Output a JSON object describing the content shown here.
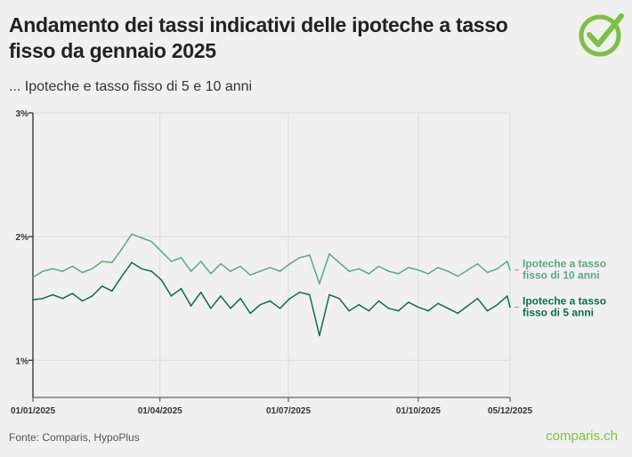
{
  "header": {
    "title": "Andamento dei tassi indicativi delle ipoteche a tasso fisso da gennaio 2025",
    "subtitle": "... Ipoteche e tasso fisso di 5 e 10 anni"
  },
  "footer": {
    "source": "Fonte: Comparis, HypoPlus",
    "brand": "comparis.ch"
  },
  "colors": {
    "ten_year": "#5aa985",
    "five_year": "#0f6e4b",
    "brand": "#7cc242"
  },
  "chart_data": {
    "type": "line",
    "title": "",
    "xlabel": "",
    "ylabel": "",
    "ylim": [
      0.7,
      3
    ],
    "yticks": [
      "1%",
      "2%",
      "3%"
    ],
    "ytick_values": [
      1,
      2,
      3
    ],
    "xticks": [
      "01/01/2025",
      "01/04/2025",
      "01/07/2025",
      "01/10/2025",
      "05/12/2025"
    ],
    "xtick_values": [
      "2025-01-01",
      "2025-04-01",
      "2025-07-01",
      "2025-10-01",
      "2025-12-05"
    ],
    "grid": true,
    "legend": "right, inline at line ends",
    "x": [
      "2025-01-01",
      "2025-01-08",
      "2025-01-15",
      "2025-01-22",
      "2025-01-29",
      "2025-02-05",
      "2025-02-12",
      "2025-02-19",
      "2025-02-26",
      "2025-03-05",
      "2025-03-12",
      "2025-03-19",
      "2025-03-26",
      "2025-04-02",
      "2025-04-09",
      "2025-04-16",
      "2025-04-23",
      "2025-04-30",
      "2025-05-07",
      "2025-05-14",
      "2025-05-21",
      "2025-05-28",
      "2025-06-04",
      "2025-06-11",
      "2025-06-18",
      "2025-06-25",
      "2025-07-02",
      "2025-07-09",
      "2025-07-16",
      "2025-07-23",
      "2025-07-30",
      "2025-08-06",
      "2025-08-13",
      "2025-08-20",
      "2025-08-27",
      "2025-09-03",
      "2025-09-10",
      "2025-09-17",
      "2025-09-24",
      "2025-10-01",
      "2025-10-08",
      "2025-10-15",
      "2025-10-22",
      "2025-10-29",
      "2025-11-05",
      "2025-11-12",
      "2025-11-19",
      "2025-11-26",
      "2025-12-03",
      "2025-12-05"
    ],
    "series": [
      {
        "name": "Ipoteche a tasso fisso di 10 anni",
        "label_lines": [
          "Ipoteche a tasso",
          "fisso di 10 anni"
        ],
        "values": [
          1.67,
          1.72,
          1.74,
          1.72,
          1.76,
          1.71,
          1.74,
          1.8,
          1.79,
          1.9,
          2.02,
          1.99,
          1.96,
          1.88,
          1.8,
          1.83,
          1.72,
          1.8,
          1.7,
          1.78,
          1.72,
          1.76,
          1.69,
          1.72,
          1.75,
          1.72,
          1.78,
          1.83,
          1.85,
          1.62,
          1.86,
          1.79,
          1.72,
          1.74,
          1.7,
          1.76,
          1.72,
          1.7,
          1.75,
          1.73,
          1.7,
          1.75,
          1.72,
          1.68,
          1.73,
          1.78,
          1.71,
          1.74,
          1.8,
          1.73
        ]
      },
      {
        "name": "Ipoteche a tasso fisso di 5 anni",
        "label_lines": [
          "Ipoteche a tasso",
          "fisso di 5 anni"
        ],
        "values": [
          1.49,
          1.5,
          1.53,
          1.5,
          1.54,
          1.48,
          1.52,
          1.6,
          1.56,
          1.68,
          1.79,
          1.74,
          1.72,
          1.65,
          1.52,
          1.58,
          1.44,
          1.55,
          1.42,
          1.52,
          1.42,
          1.5,
          1.38,
          1.45,
          1.48,
          1.42,
          1.5,
          1.55,
          1.53,
          1.2,
          1.53,
          1.5,
          1.4,
          1.45,
          1.4,
          1.48,
          1.42,
          1.4,
          1.47,
          1.43,
          1.4,
          1.46,
          1.42,
          1.38,
          1.44,
          1.5,
          1.4,
          1.45,
          1.52,
          1.43
        ]
      }
    ]
  }
}
